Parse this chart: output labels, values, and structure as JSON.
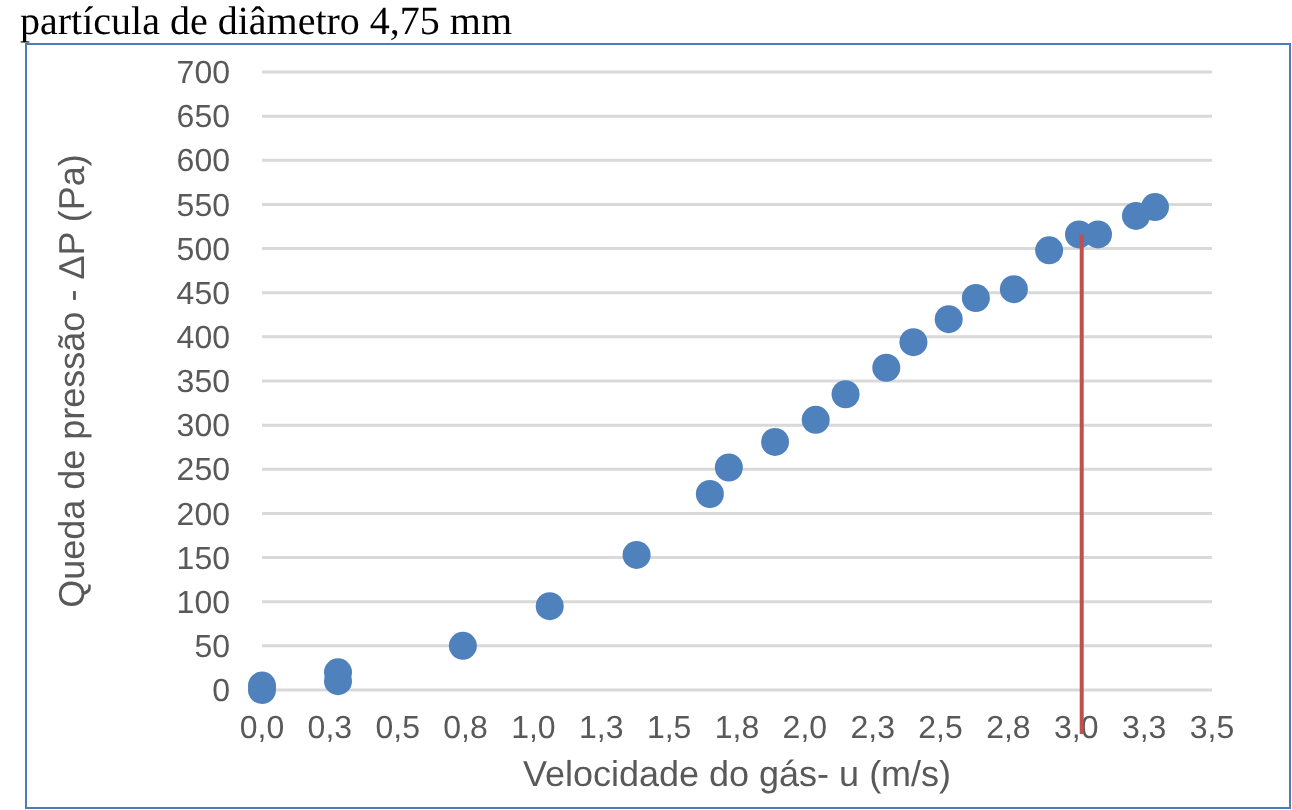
{
  "chart_data": {
    "type": "scatter",
    "title": "partícula de diâmetro 4,75 mm",
    "xlabel": "Velocidade do gás- u (m/s)",
    "ylabel": "Queda de pressão - ΔP (Pa)",
    "x": [
      0,
      0,
      0.28,
      0.28,
      0.74,
      1.06,
      1.38,
      1.65,
      1.72,
      1.89,
      2.04,
      2.15,
      2.3,
      2.4,
      2.53,
      2.63,
      2.77,
      2.9,
      3.01,
      3.08,
      3.22,
      3.29
    ],
    "series": [
      {
        "color": "#4f81bd",
        "values": [
          0,
          5,
          10,
          20,
          50,
          95,
          153,
          222,
          252,
          281,
          306,
          335,
          365,
          394,
          420,
          444,
          454,
          498,
          516,
          516,
          537,
          547
        ]
      }
    ],
    "xlim": [
      0,
      3.5
    ],
    "xticks": [
      {
        "value": 0,
        "label": "0,0"
      },
      {
        "value": 0.25,
        "label": "0,3"
      },
      {
        "value": 0.5,
        "label": "0,5"
      },
      {
        "value": 0.75,
        "label": "0,8"
      },
      {
        "value": 1,
        "label": "1,0"
      },
      {
        "value": 1.25,
        "label": "1,3"
      },
      {
        "value": 1.5,
        "label": "1,5"
      },
      {
        "value": 1.75,
        "label": "1,8"
      },
      {
        "value": 2,
        "label": "2,0"
      },
      {
        "value": 2.25,
        "label": "2,3"
      },
      {
        "value": 2.5,
        "label": "2,5"
      },
      {
        "value": 2.75,
        "label": "2,8"
      },
      {
        "value": 3,
        "label": "3,0"
      },
      {
        "value": 3.25,
        "label": "3,3"
      },
      {
        "value": 3.5,
        "label": "3,5"
      }
    ],
    "ylim": [
      0,
      700
    ],
    "yticks": [
      0,
      50,
      100,
      150,
      200,
      250,
      300,
      350,
      400,
      450,
      500,
      550,
      600,
      650,
      700
    ],
    "grid": "y",
    "marker": "circle",
    "ref_lines": [
      {
        "axis": "x",
        "value": 3.02,
        "color": "#c0504d"
      }
    ]
  }
}
